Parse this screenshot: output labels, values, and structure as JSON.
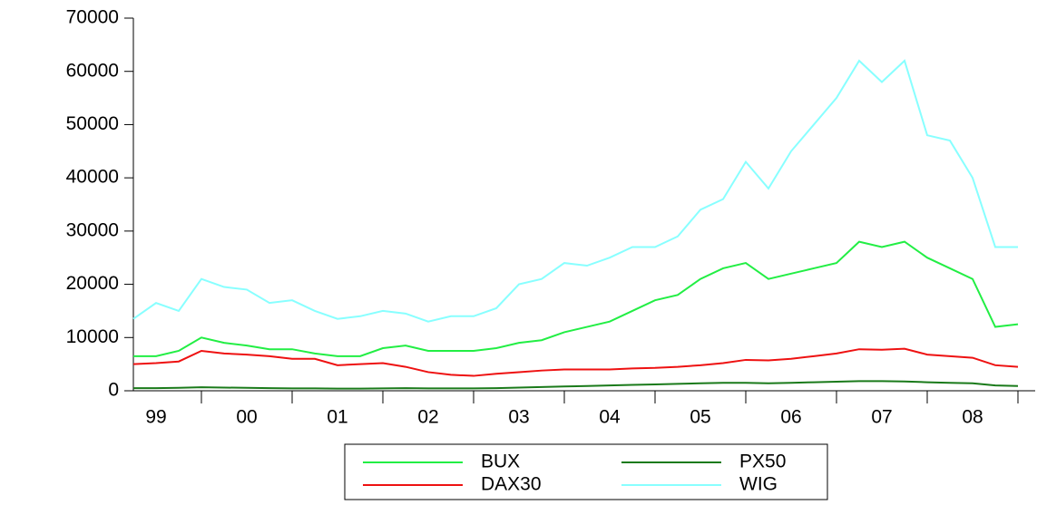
{
  "chart_data": {
    "type": "line",
    "categories": [
      null,
      "99",
      null,
      null,
      null,
      "00",
      null,
      null,
      null,
      "01",
      null,
      null,
      null,
      "02",
      null,
      null,
      null,
      "03",
      null,
      null,
      null,
      "04",
      null,
      null,
      null,
      "05",
      null,
      null,
      null,
      "06",
      null,
      null,
      null,
      "07",
      null,
      null,
      null,
      "08",
      null,
      null
    ],
    "series": [
      {
        "name": "BUX",
        "color": "#22ee44",
        "values": [
          6500,
          6500,
          7500,
          10000,
          9000,
          8500,
          7800,
          7800,
          7000,
          6500,
          6500,
          8000,
          8500,
          7500,
          7500,
          7500,
          8000,
          9000,
          9500,
          11000,
          12000,
          13000,
          15000,
          17000,
          18000,
          21000,
          23000,
          24000,
          21000,
          22000,
          23000,
          24000,
          28000,
          27000,
          28000,
          25000,
          23000,
          21000,
          12000,
          12500
        ]
      },
      {
        "name": "PX50",
        "color": "#1a7a1a",
        "values": [
          500,
          500,
          550,
          650,
          600,
          550,
          500,
          450,
          450,
          400,
          400,
          450,
          500,
          450,
          450,
          450,
          500,
          600,
          700,
          800,
          900,
          1000,
          1100,
          1200,
          1300,
          1400,
          1500,
          1500,
          1400,
          1500,
          1600,
          1700,
          1800,
          1800,
          1750,
          1600,
          1500,
          1400,
          1000,
          900
        ]
      },
      {
        "name": "DAX30",
        "color": "#ee1111",
        "values": [
          5000,
          5200,
          5500,
          7500,
          7000,
          6800,
          6500,
          6000,
          6000,
          4800,
          5000,
          5200,
          4500,
          3500,
          3000,
          2800,
          3200,
          3500,
          3800,
          4000,
          4000,
          4000,
          4200,
          4300,
          4500,
          4800,
          5200,
          5800,
          5700,
          6000,
          6500,
          7000,
          7800,
          7700,
          7900,
          6800,
          6500,
          6200,
          4800,
          4500
        ]
      },
      {
        "name": "WIG",
        "color": "#88ffff",
        "values": [
          13500,
          16500,
          15000,
          21000,
          19500,
          19000,
          16500,
          17000,
          15000,
          13500,
          14000,
          15000,
          14500,
          13000,
          14000,
          14000,
          15500,
          20000,
          21000,
          24000,
          23500,
          25000,
          27000,
          27000,
          29000,
          34000,
          36000,
          43000,
          38000,
          45000,
          50000,
          55000,
          62000,
          58000,
          62000,
          48000,
          47000,
          40000,
          27000,
          27000
        ]
      }
    ],
    "ylim": [
      0,
      70000
    ],
    "yticks": [
      0,
      10000,
      20000,
      30000,
      40000,
      50000,
      60000,
      70000
    ]
  }
}
